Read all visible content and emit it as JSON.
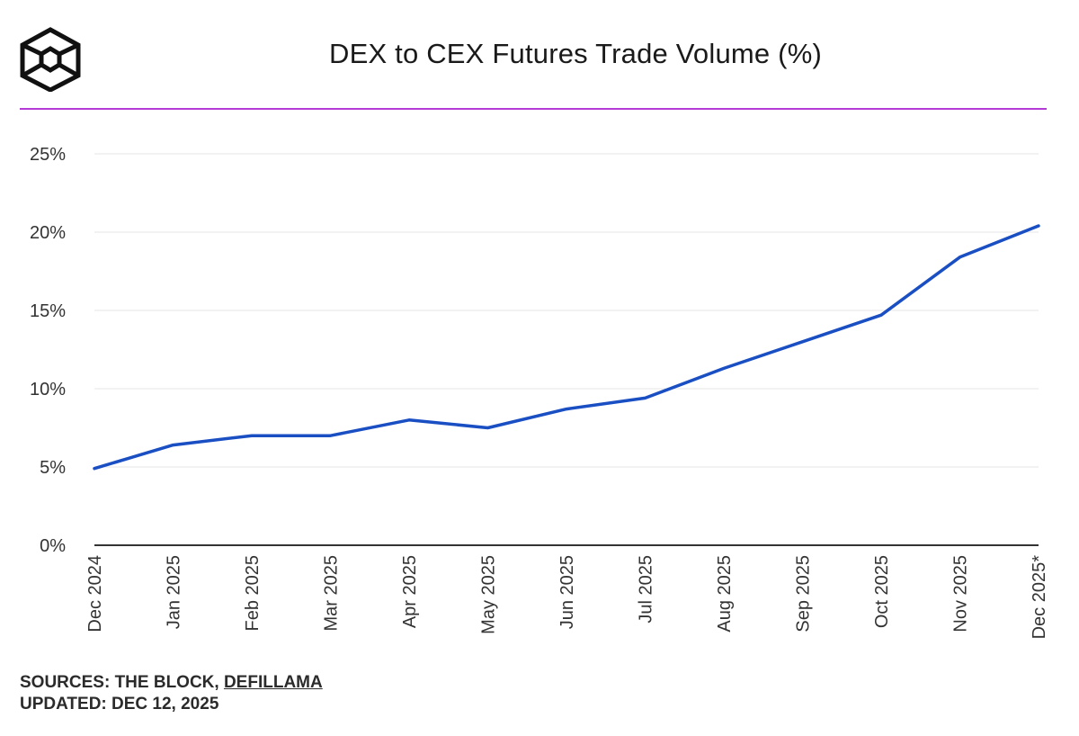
{
  "header": {
    "title": "DEX to CEX Futures Trade Volume (%)",
    "logo_icon": "the-block-cube-logo-icon",
    "rule_color": "#b43bd6"
  },
  "chart_data": {
    "type": "line",
    "title": "DEX to CEX Futures Trade Volume (%)",
    "xlabel": "",
    "ylabel": "",
    "categories": [
      "Dec 2024",
      "Jan 2025",
      "Feb 2025",
      "Mar 2025",
      "Apr 2025",
      "May 2025",
      "Jun 2025",
      "Jul 2025",
      "Aug 2025",
      "Sep 2025",
      "Oct 2025",
      "Nov 2025",
      "Dec 2025*"
    ],
    "series": [
      {
        "name": "DEX to CEX Futures Trade Volume (%)",
        "color": "#1a4fc4",
        "values": [
          4.9,
          6.4,
          7.0,
          7.0,
          8.0,
          7.5,
          8.7,
          9.4,
          11.3,
          13.0,
          14.7,
          18.4,
          20.4
        ]
      }
    ],
    "ylim": [
      0,
      25
    ],
    "yticks": [
      0,
      5,
      10,
      15,
      20,
      25
    ],
    "ytick_labels": [
      "0%",
      "5%",
      "10%",
      "15%",
      "20%",
      "25%"
    ],
    "grid": true,
    "legend": "none"
  },
  "footer": {
    "sources_prefix": "SOURCES: THE BLOCK, ",
    "sources_link": "DEFILLAMA",
    "updated": "UPDATED: DEC 12, 2025"
  }
}
